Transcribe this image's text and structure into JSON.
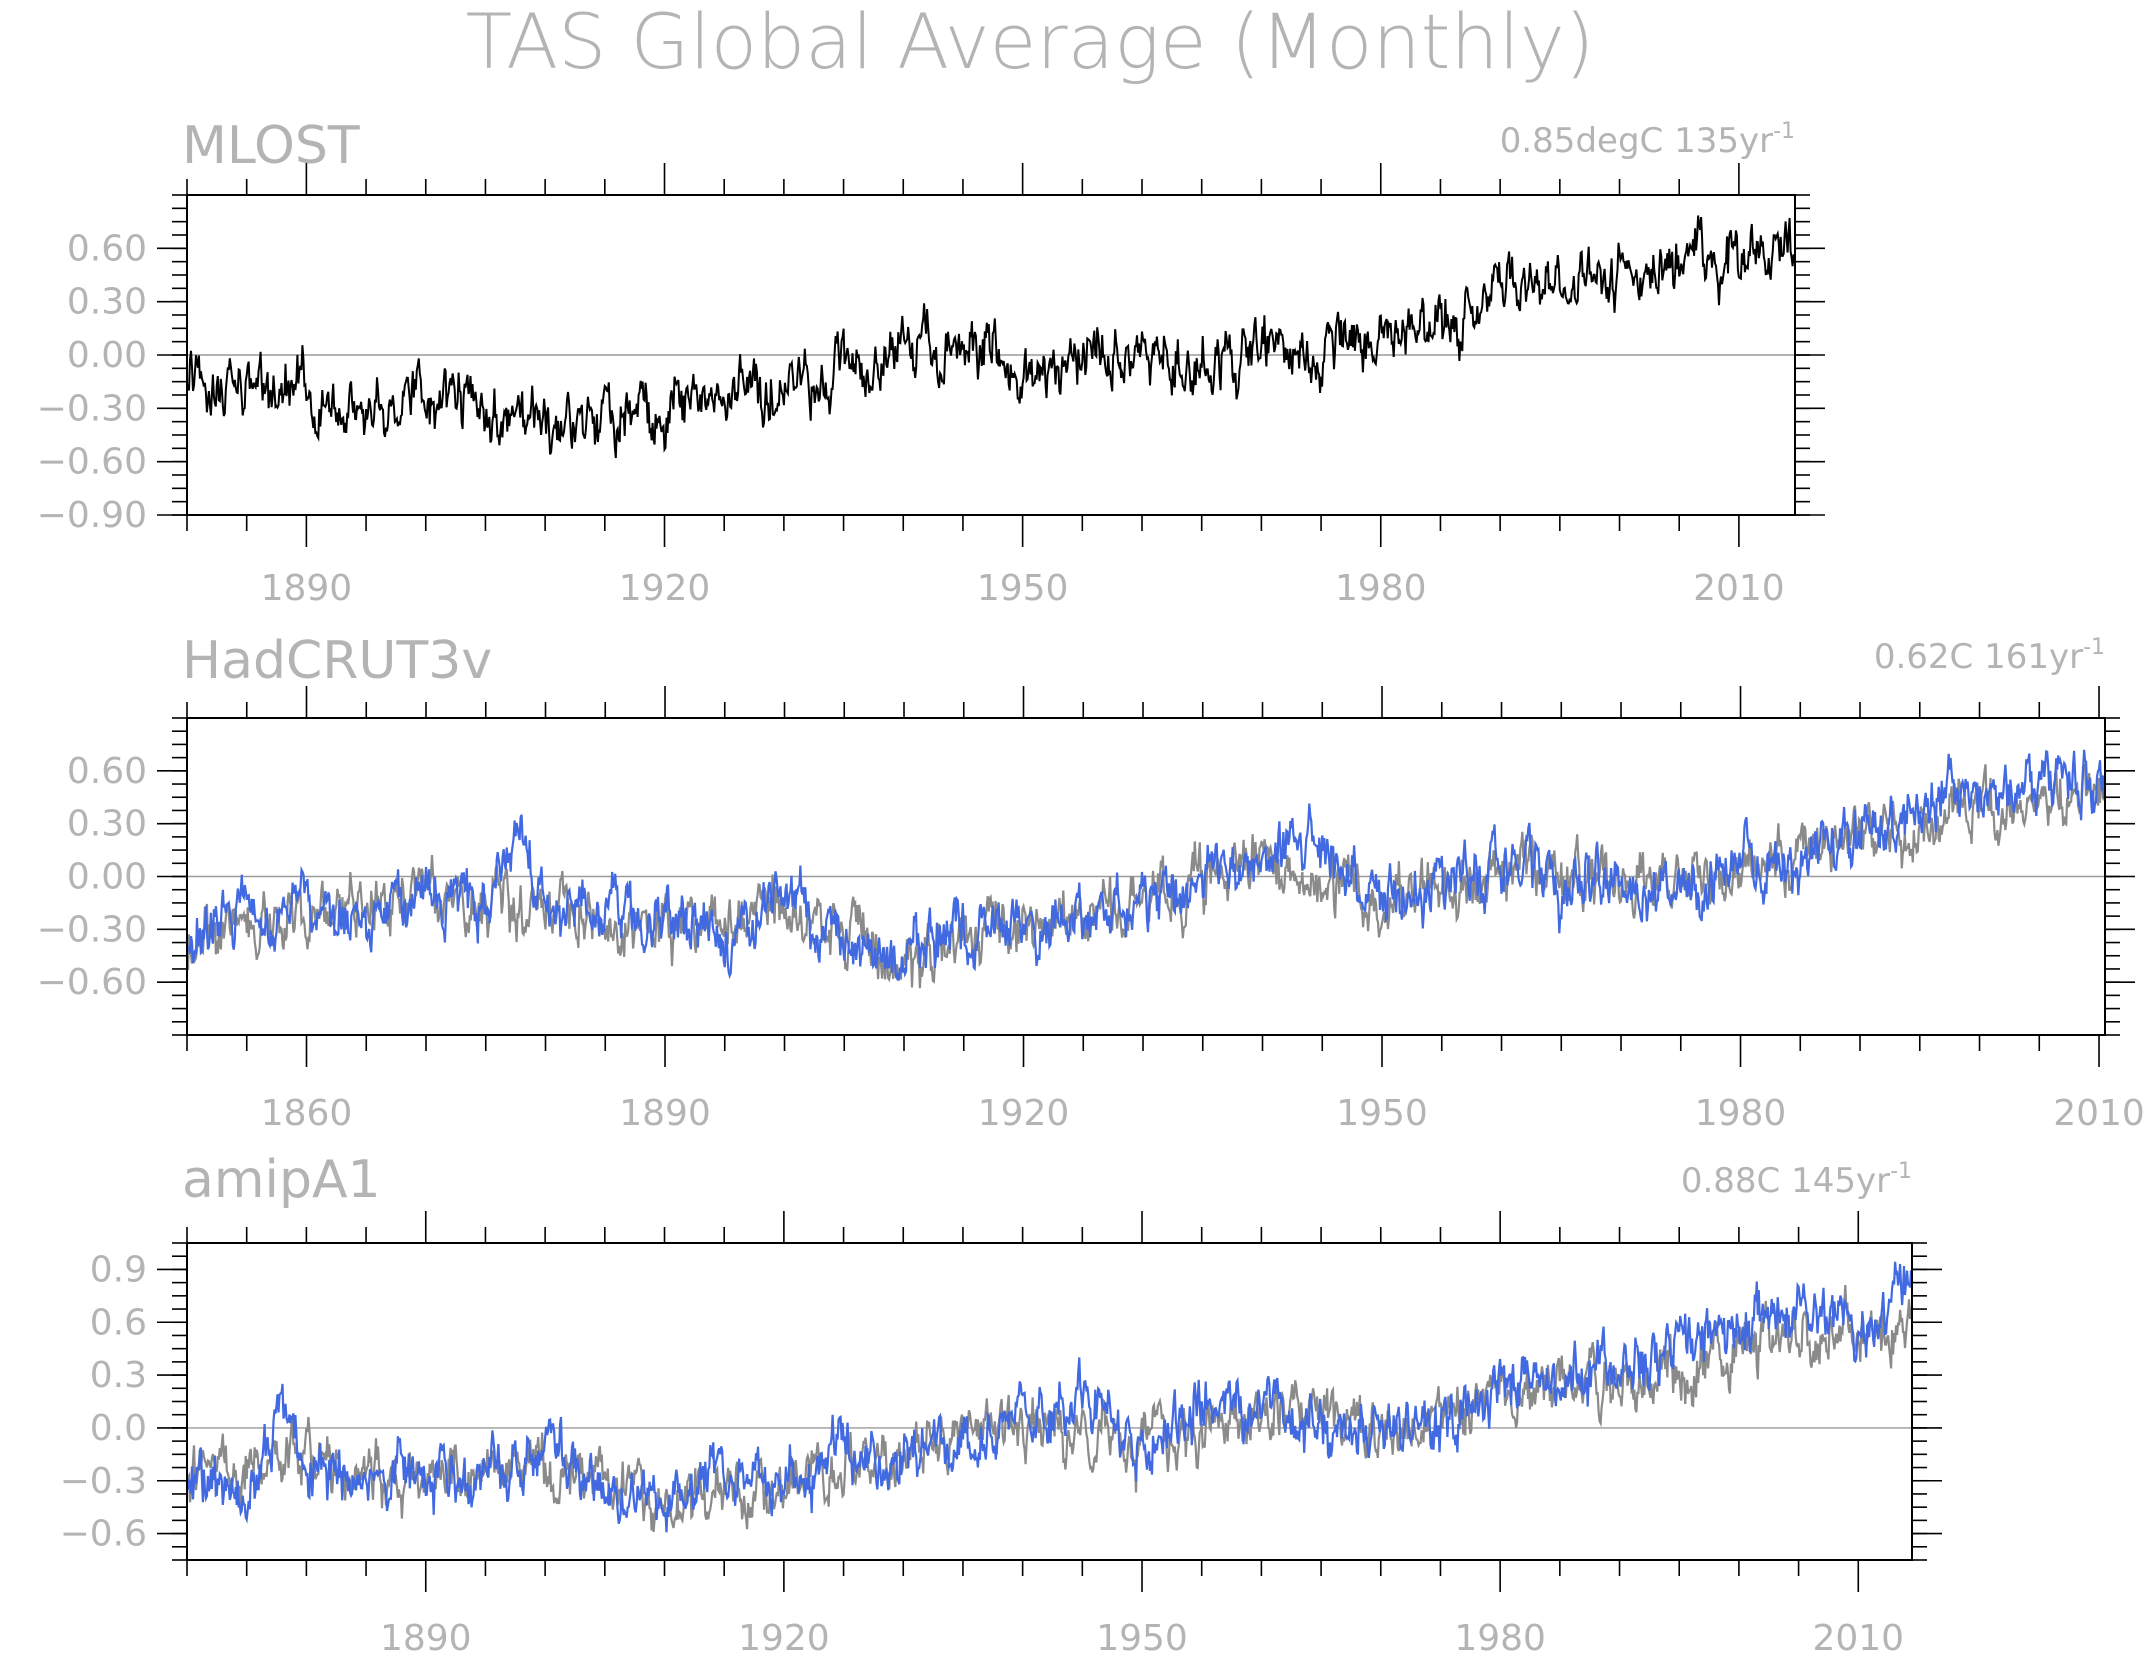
{
  "title": "TAS Global Average (Monthly)",
  "chart_data": [
    {
      "type": "line",
      "title": "MLOST",
      "trend": "0.85degC 135yr",
      "trend_exp": "-1",
      "xlim": [
        1880,
        2014.7
      ],
      "ylim": [
        -0.9,
        0.9
      ],
      "yticks": [
        -0.9,
        -0.6,
        -0.3,
        0.0,
        0.3,
        0.6
      ],
      "ytick_labels": [
        "-0.90",
        "-0.60",
        "-0.30",
        "0.00",
        "0.30",
        "0.60"
      ],
      "xticks": [
        1890,
        1920,
        1950,
        1980,
        2010
      ],
      "series": [
        {
          "color": "#000000",
          "x": [
            1880,
            1885,
            1890,
            1895,
            1900,
            1905,
            1910,
            1915,
            1920,
            1925,
            1930,
            1935,
            1940,
            1945,
            1950,
            1955,
            1960,
            1965,
            1970,
            1975,
            1980,
            1985,
            1990,
            1995,
            2000,
            2005,
            2010,
            2014
          ],
          "y": [
            -0.15,
            -0.2,
            -0.22,
            -0.3,
            -0.18,
            -0.33,
            -0.45,
            -0.38,
            -0.28,
            -0.22,
            -0.15,
            -0.1,
            0.05,
            0.1,
            -0.12,
            -0.05,
            0.05,
            -0.08,
            0.02,
            -0.05,
            0.15,
            0.12,
            0.3,
            0.35,
            0.45,
            0.55,
            0.52,
            0.6
          ]
        }
      ]
    },
    {
      "type": "line",
      "title": "HadCRUT3v",
      "trend": "0.62C 161yr",
      "trend_exp": "-1",
      "xlim": [
        1850,
        2010.5
      ],
      "ylim": [
        -0.9,
        0.9
      ],
      "yticks": [
        -0.6,
        -0.3,
        0.0,
        0.3,
        0.6
      ],
      "ytick_labels": [
        "-0.60",
        "-0.30",
        "0.00",
        "0.30",
        "0.60"
      ],
      "xticks": [
        1860,
        1890,
        1920,
        1950,
        1980,
        2010
      ],
      "series": [
        {
          "color": "#4169e1",
          "x": [
            1850,
            1855,
            1860,
            1865,
            1870,
            1875,
            1878,
            1880,
            1885,
            1890,
            1895,
            1900,
            1905,
            1910,
            1915,
            1920,
            1925,
            1930,
            1935,
            1940,
            1944,
            1950,
            1955,
            1960,
            1965,
            1970,
            1975,
            1980,
            1985,
            1990,
            1995,
            1998,
            2000,
            2005,
            2010
          ],
          "y": [
            -0.35,
            -0.15,
            -0.2,
            -0.18,
            -0.12,
            -0.18,
            0.25,
            -0.15,
            -0.2,
            -0.25,
            -0.35,
            -0.12,
            -0.38,
            -0.45,
            -0.28,
            -0.28,
            -0.2,
            -0.12,
            -0.05,
            0.12,
            0.18,
            -0.12,
            -0.05,
            0.02,
            -0.05,
            -0.02,
            -0.05,
            0.1,
            0.05,
            0.25,
            0.3,
            0.6,
            0.4,
            0.5,
            0.55
          ]
        },
        {
          "color": "#8a8a8a",
          "x": [
            1850,
            1860,
            1870,
            1880,
            1890,
            1900,
            1910,
            1920,
            1930,
            1940,
            1950,
            1960,
            1970,
            1980,
            1990,
            2000,
            2010
          ],
          "y": [
            -0.35,
            -0.2,
            -0.14,
            -0.17,
            -0.27,
            -0.15,
            -0.47,
            -0.3,
            -0.14,
            0.1,
            -0.13,
            0.0,
            -0.04,
            0.08,
            0.24,
            0.42,
            0.56
          ]
        }
      ]
    },
    {
      "type": "line",
      "title": "amipA1",
      "trend": "0.88C 145yr",
      "trend_exp": "-1",
      "xlim": [
        1870,
        2014.5
      ],
      "ylim": [
        -0.75,
        1.05
      ],
      "yticks": [
        -0.6,
        -0.3,
        0.0,
        0.3,
        0.6,
        0.9
      ],
      "ytick_labels": [
        "-0.6",
        "-0.3",
        "0.0",
        "0.3",
        "0.6",
        "0.9"
      ],
      "xticks": [
        1890,
        1920,
        1950,
        1980,
        2010
      ],
      "series": [
        {
          "color": "#4169e1",
          "x": [
            1870,
            1875,
            1878,
            1880,
            1885,
            1890,
            1895,
            1900,
            1905,
            1910,
            1915,
            1920,
            1925,
            1930,
            1935,
            1940,
            1945,
            1950,
            1955,
            1960,
            1965,
            1970,
            1975,
            1980,
            1985,
            1990,
            1995,
            2000,
            2005,
            2010,
            2014
          ],
          "y": [
            -0.3,
            -0.35,
            0.1,
            -0.2,
            -0.25,
            -0.3,
            -0.25,
            -0.1,
            -0.35,
            -0.4,
            -0.25,
            -0.3,
            -0.2,
            -0.15,
            -0.05,
            0.05,
            0.15,
            -0.05,
            0.1,
            0.15,
            0.0,
            0.05,
            0.0,
            0.2,
            0.3,
            0.35,
            0.45,
            0.6,
            0.7,
            0.55,
            0.8
          ]
        },
        {
          "color": "#8a8a8a",
          "x": [
            1870,
            1880,
            1890,
            1900,
            1910,
            1920,
            1930,
            1940,
            1950,
            1960,
            1970,
            1980,
            1990,
            2000,
            2010,
            2014
          ],
          "y": [
            -0.3,
            -0.2,
            -0.3,
            -0.2,
            -0.42,
            -0.32,
            -0.18,
            0.02,
            -0.1,
            0.08,
            -0.05,
            0.15,
            0.25,
            0.45,
            0.55,
            0.6
          ]
        }
      ]
    }
  ]
}
